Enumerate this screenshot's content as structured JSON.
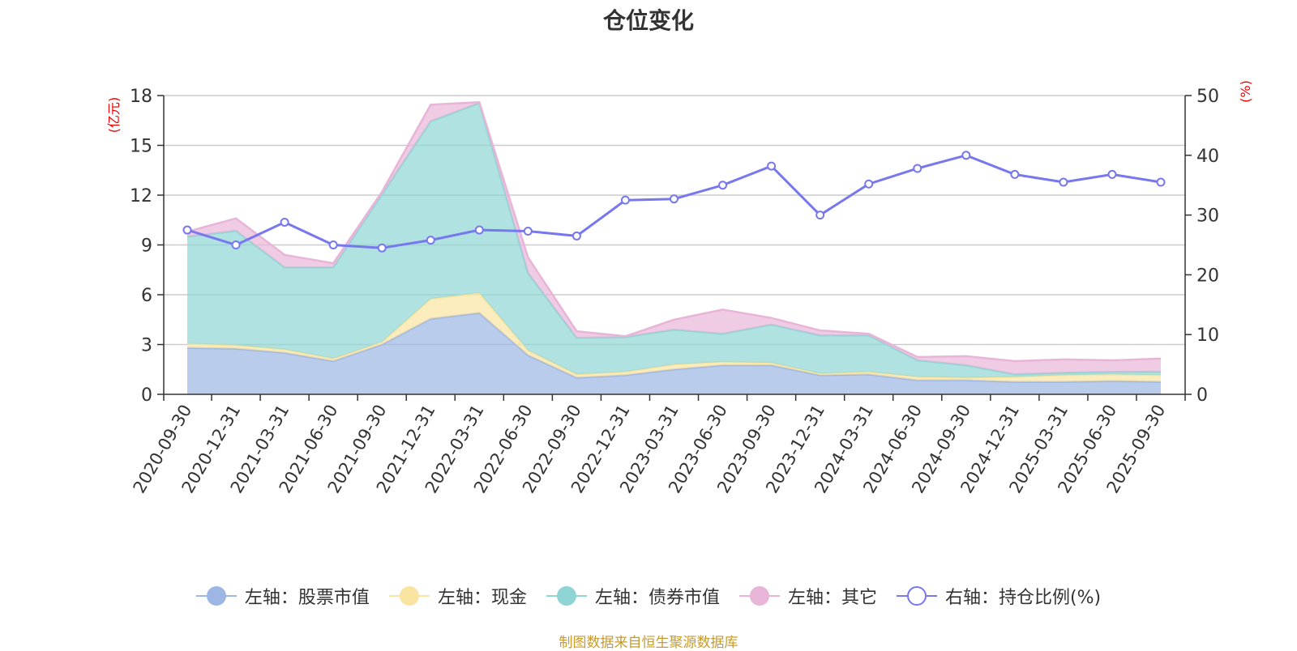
{
  "colors": {
    "stock": "#9db6e3",
    "cash": "#f9e4a1",
    "bond": "#8fd5d5",
    "other": "#e8b5d8",
    "ratio": "#7777ee",
    "axis_unit": "#ee0000",
    "source": "#c89a2a"
  },
  "chart_data": {
    "type": "area",
    "title": "仓位变化",
    "left_axis": {
      "unit": "(亿元)",
      "range": [
        0,
        18
      ],
      "ticks": [
        "0",
        "3",
        "6",
        "9",
        "12",
        "15",
        "18"
      ]
    },
    "right_axis": {
      "unit": "(%)",
      "range": [
        0,
        50
      ],
      "ticks": [
        "0",
        "10",
        "20",
        "30",
        "40",
        "50"
      ]
    },
    "categories": [
      "2020-09-30",
      "2020-12-31",
      "2021-03-31",
      "2021-06-30",
      "2021-09-30",
      "2021-12-31",
      "2022-03-31",
      "2022-06-30",
      "2022-09-30",
      "2022-12-31",
      "2023-03-31",
      "2023-06-30",
      "2023-09-30",
      "2023-12-31",
      "2024-03-31",
      "2024-06-30",
      "2024-09-30",
      "2024-12-31",
      "2025-03-31",
      "2025-06-30",
      "2025-09-30"
    ],
    "stacked_series": [
      {
        "key": "stock",
        "name": "左轴：股票市值",
        "values": [
          2.8,
          2.75,
          2.5,
          2.0,
          3.0,
          4.55,
          4.9,
          2.35,
          1.0,
          1.15,
          1.5,
          1.75,
          1.75,
          1.15,
          1.2,
          0.85,
          0.85,
          0.75,
          0.75,
          0.8,
          0.75
        ]
      },
      {
        "key": "cash",
        "name": "左轴：现金",
        "values": [
          0.25,
          0.2,
          0.2,
          0.15,
          0.15,
          1.2,
          1.2,
          0.3,
          0.2,
          0.2,
          0.3,
          0.2,
          0.15,
          0.1,
          0.15,
          0.2,
          0.15,
          0.3,
          0.4,
          0.4,
          0.4
        ]
      },
      {
        "key": "bond",
        "name": "左轴：债券市值",
        "values": [
          6.45,
          6.9,
          4.95,
          5.5,
          8.9,
          10.7,
          11.45,
          4.65,
          2.2,
          2.1,
          2.1,
          1.7,
          2.3,
          2.3,
          2.2,
          1.0,
          0.75,
          0.15,
          0.15,
          0.15,
          0.2
        ]
      },
      {
        "key": "other",
        "name": "左轴：其它",
        "values": [
          0.3,
          0.75,
          0.75,
          0.25,
          0.15,
          1.0,
          0.05,
          0.95,
          0.4,
          0.05,
          0.6,
          1.45,
          0.4,
          0.3,
          0.1,
          0.2,
          0.55,
          0.8,
          0.8,
          0.7,
          0.8
        ]
      }
    ],
    "line_series": {
      "key": "ratio",
      "name": "右轴：持仓比例(%)",
      "axis": "right",
      "values": [
        27.5,
        25.0,
        28.8,
        25.0,
        24.5,
        25.8,
        27.5,
        27.3,
        26.5,
        32.5,
        32.7,
        35.0,
        38.2,
        30.0,
        35.2,
        37.8,
        40.0,
        36.8,
        35.5,
        36.8,
        35.5
      ]
    },
    "grid": true,
    "legend": "bottom-center"
  },
  "source_note": "制图数据来自恒生聚源数据库"
}
